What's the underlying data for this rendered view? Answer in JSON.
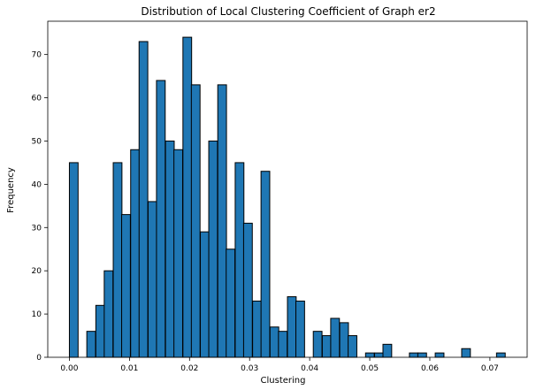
{
  "chart_data": {
    "type": "bar",
    "title": "Distribution of Local Clustering Coefficient of Graph er2",
    "xlabel": "Clustering",
    "ylabel": "Frequency",
    "xlim": [
      -0.0036,
      0.0762
    ],
    "ylim": [
      0,
      77.7
    ],
    "x_ticks": [
      "0.00",
      "0.01",
      "0.02",
      "0.03",
      "0.04",
      "0.05",
      "0.06",
      "0.07"
    ],
    "y_ticks": [
      "0",
      "10",
      "20",
      "30",
      "40",
      "50",
      "60",
      "70"
    ],
    "grid": false,
    "bar_color": "#1f77b4",
    "edge_color": "#000000",
    "bin_width": 0.00145,
    "bins": [
      {
        "x0": 0.0,
        "count": 45
      },
      {
        "x0": 0.0029,
        "count": 6
      },
      {
        "x0": 0.0044,
        "count": 12
      },
      {
        "x0": 0.0058,
        "count": 20
      },
      {
        "x0": 0.0073,
        "count": 45
      },
      {
        "x0": 0.0087,
        "count": 33
      },
      {
        "x0": 0.0102,
        "count": 48
      },
      {
        "x0": 0.0116,
        "count": 73
      },
      {
        "x0": 0.0131,
        "count": 36
      },
      {
        "x0": 0.0145,
        "count": 64
      },
      {
        "x0": 0.016,
        "count": 50
      },
      {
        "x0": 0.0174,
        "count": 48
      },
      {
        "x0": 0.0189,
        "count": 74
      },
      {
        "x0": 0.0203,
        "count": 63
      },
      {
        "x0": 0.0218,
        "count": 29
      },
      {
        "x0": 0.0232,
        "count": 50
      },
      {
        "x0": 0.0247,
        "count": 63
      },
      {
        "x0": 0.0261,
        "count": 25
      },
      {
        "x0": 0.0276,
        "count": 45
      },
      {
        "x0": 0.029,
        "count": 31
      },
      {
        "x0": 0.0305,
        "count": 13
      },
      {
        "x0": 0.0319,
        "count": 43
      },
      {
        "x0": 0.0334,
        "count": 7
      },
      {
        "x0": 0.0348,
        "count": 6
      },
      {
        "x0": 0.0363,
        "count": 14
      },
      {
        "x0": 0.0377,
        "count": 13
      },
      {
        "x0": 0.0406,
        "count": 6
      },
      {
        "x0": 0.0421,
        "count": 5
      },
      {
        "x0": 0.0435,
        "count": 9
      },
      {
        "x0": 0.045,
        "count": 8
      },
      {
        "x0": 0.0464,
        "count": 5
      },
      {
        "x0": 0.0493,
        "count": 1
      },
      {
        "x0": 0.0508,
        "count": 1
      },
      {
        "x0": 0.0522,
        "count": 3
      },
      {
        "x0": 0.0566,
        "count": 1
      },
      {
        "x0": 0.058,
        "count": 1
      },
      {
        "x0": 0.0609,
        "count": 1
      },
      {
        "x0": 0.0653,
        "count": 2
      },
      {
        "x0": 0.0711,
        "count": 1
      }
    ]
  }
}
